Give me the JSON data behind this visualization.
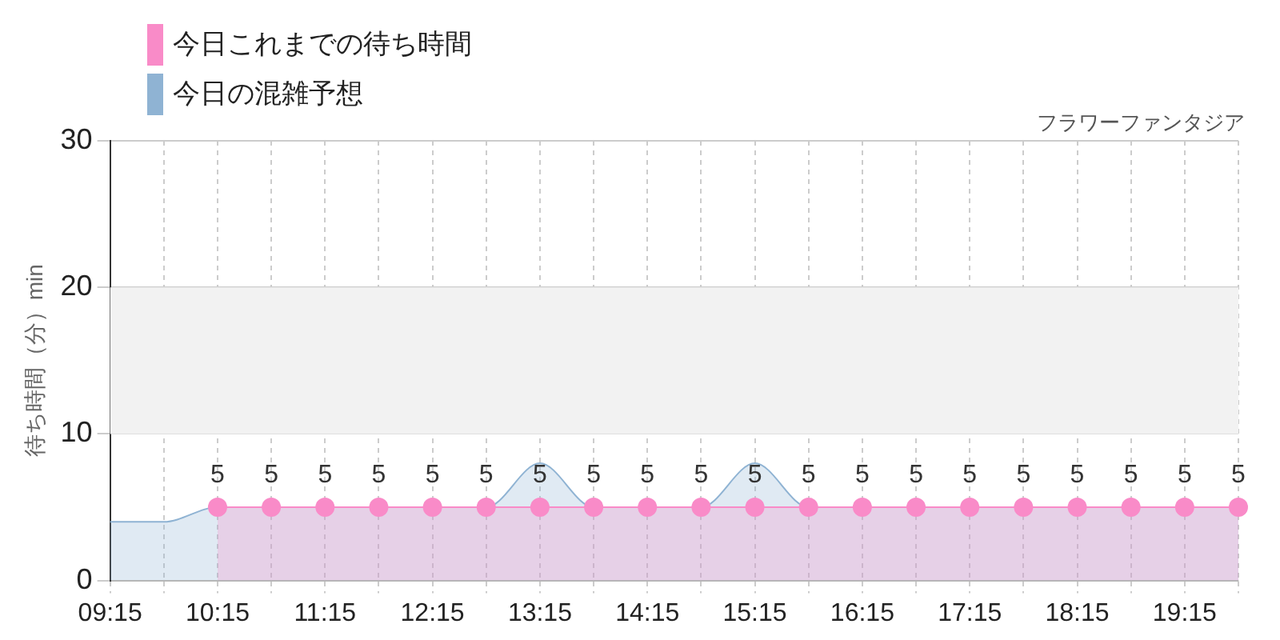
{
  "chart_data": {
    "type": "area",
    "subtitle": "フラワーファンタジア",
    "ylabel": "待ち時間（分）min",
    "categories": [
      "09:15",
      null,
      "10:15",
      null,
      "11:15",
      null,
      "12:15",
      null,
      "13:15",
      null,
      "14:15",
      null,
      "15:15",
      null,
      "16:15",
      null,
      "17:15",
      null,
      "18:15",
      null,
      "19:15",
      null
    ],
    "series": [
      {
        "name": "今日これまでの待ち時間",
        "color": "#f98bc8",
        "marker": "circle",
        "values": [
          null,
          null,
          5,
          5,
          5,
          5,
          5,
          5,
          5,
          5,
          5,
          5,
          5,
          5,
          5,
          5,
          5,
          5,
          5,
          5,
          5,
          5
        ],
        "value_labels": [
          null,
          null,
          "5",
          "5",
          "5",
          "5",
          "5",
          "5",
          "5",
          "5",
          "5",
          "5",
          "5",
          "5",
          "5",
          "5",
          "5",
          "5",
          "5",
          "5",
          "5",
          "5"
        ]
      },
      {
        "name": "今日の混雑予想",
        "color": "#8fb3d3",
        "values": [
          4,
          4,
          5,
          5,
          5,
          5,
          5,
          5,
          8,
          5,
          5,
          5,
          8,
          5,
          5,
          5,
          5,
          5,
          5,
          5,
          5,
          5
        ]
      }
    ],
    "ylim": [
      0,
      30
    ],
    "yticks": [
      0,
      10,
      20,
      30
    ],
    "grid": true,
    "legend": "top left",
    "bands": [
      {
        "axis": "y",
        "from": 10,
        "to": 20,
        "color": "#f2f2f2"
      }
    ]
  }
}
